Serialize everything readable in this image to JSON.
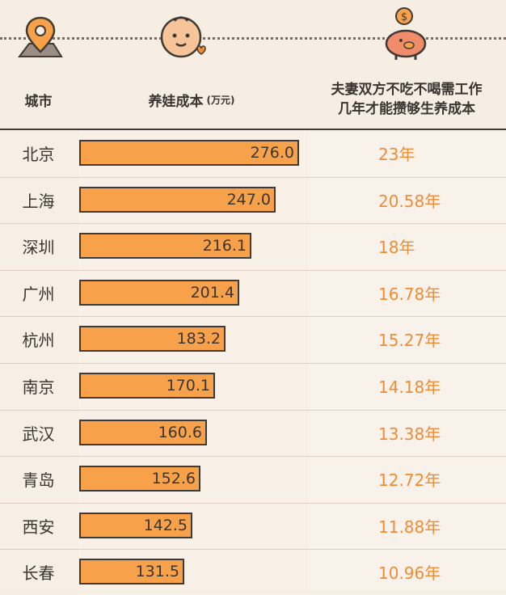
{
  "header": {
    "city_label": "城市",
    "cost_label": "养娃成本",
    "cost_unit": "(万元)",
    "years_line1": "夫妻双方不吃不喝需工作",
    "years_line2": "几年才能攒够生养成本"
  },
  "icons": [
    "location-pin-icon",
    "baby-face-icon",
    "piggy-bank-icon"
  ],
  "colors": {
    "bar": "#f7a24a",
    "years_text": "#f08c35",
    "background": "#f6ede3"
  },
  "chart_data": {
    "type": "table",
    "columns": [
      "城市",
      "养娃成本 (万元)",
      "夫妻双方不吃不喝需工作几年才能攒够生养成本"
    ],
    "rows": [
      {
        "city": "北京",
        "cost": 276.0,
        "cost_label": "276.0",
        "years": "23年"
      },
      {
        "city": "上海",
        "cost": 247.0,
        "cost_label": "247.0",
        "years": "20.58年"
      },
      {
        "city": "深圳",
        "cost": 216.1,
        "cost_label": "216.1",
        "years": "18年"
      },
      {
        "city": "广州",
        "cost": 201.4,
        "cost_label": "201.4",
        "years": "16.78年"
      },
      {
        "city": "杭州",
        "cost": 183.2,
        "cost_label": "183.2",
        "years": "15.27年"
      },
      {
        "city": "南京",
        "cost": 170.1,
        "cost_label": "170.1",
        "years": "14.18年"
      },
      {
        "city": "武汉",
        "cost": 160.6,
        "cost_label": "160.6",
        "years": "13.38年"
      },
      {
        "city": "青岛",
        "cost": 152.6,
        "cost_label": "152.6",
        "years": "12.72年"
      },
      {
        "city": "西安",
        "cost": 142.5,
        "cost_label": "142.5",
        "years": "11.88年"
      },
      {
        "city": "长春",
        "cost": 131.5,
        "cost_label": "131.5",
        "years": "10.96年"
      }
    ],
    "bar_scale_max": 276.0
  }
}
